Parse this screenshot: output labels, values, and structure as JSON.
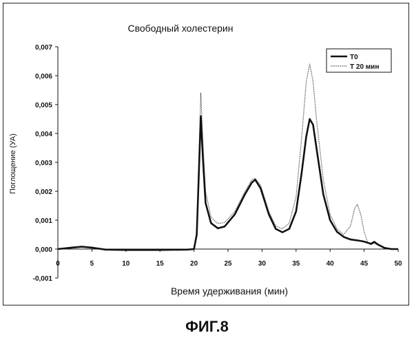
{
  "caption": "ФИГ.8",
  "chart_data": {
    "type": "line",
    "title": "Свободный холестерин",
    "xlabel": "Время удерживания (мин)",
    "ylabel": "Поглощение (УА)",
    "xlim": [
      0,
      50
    ],
    "ylim": [
      -0.001,
      0.007
    ],
    "x_ticks": [
      "0",
      "5",
      "10",
      "15",
      "20",
      "25",
      "30",
      "35",
      "40",
      "45",
      "50"
    ],
    "y_ticks": [
      "-0,001",
      "0,000",
      "0,001",
      "0,002",
      "0,003",
      "0,004",
      "0,005",
      "0,006",
      "0,007"
    ],
    "legend": "top-right",
    "series": [
      {
        "name": "T0",
        "color": "#111111",
        "x": [
          0,
          2,
          3.5,
          5,
          7,
          10,
          15,
          19,
          20,
          20.4,
          20.7,
          21.0,
          21.3,
          21.7,
          22.5,
          23.5,
          24.5,
          26,
          27.5,
          28.5,
          29,
          29.8,
          31,
          32,
          33,
          34,
          35,
          35.8,
          36.5,
          37,
          37.5,
          38,
          39,
          40,
          41,
          42,
          43,
          44,
          45,
          45.5,
          46,
          46.5,
          47,
          48,
          49,
          50
        ],
        "y": [
          0.0,
          5e-05,
          8e-05,
          5e-05,
          -2e-05,
          -3e-05,
          -3e-05,
          -2e-05,
          0.0,
          0.0005,
          0.0025,
          0.0046,
          0.0032,
          0.0016,
          0.0009,
          0.00072,
          0.00078,
          0.0012,
          0.0019,
          0.0023,
          0.0024,
          0.0021,
          0.0012,
          0.0007,
          0.00058,
          0.0007,
          0.0013,
          0.0026,
          0.0039,
          0.0045,
          0.0043,
          0.0035,
          0.0019,
          0.001,
          0.0006,
          0.00042,
          0.00033,
          0.0003,
          0.00026,
          0.00022,
          0.00018,
          0.00025,
          0.00016,
          4e-05,
          0.0,
          0.0
        ]
      },
      {
        "name": "T 20 мин",
        "color": "#555555",
        "x": [
          0,
          2,
          3.5,
          5,
          7,
          10,
          15,
          19,
          20,
          20.4,
          20.7,
          21.0,
          21.3,
          21.7,
          22.5,
          23.5,
          24.5,
          26,
          27.5,
          28.5,
          29,
          29.8,
          31,
          32,
          33,
          34,
          35,
          35.8,
          36.5,
          37,
          37.5,
          38,
          39,
          40,
          41,
          42,
          43,
          43.6,
          44,
          44.5,
          45,
          45.5,
          46,
          46.5,
          47,
          48,
          49,
          50
        ],
        "y": [
          0.0,
          5e-05,
          8e-05,
          5e-05,
          -2e-05,
          -3e-05,
          -3e-05,
          -2e-05,
          0.0,
          0.0006,
          0.003,
          0.0054,
          0.0038,
          0.002,
          0.0011,
          0.00088,
          0.00092,
          0.0013,
          0.002,
          0.0024,
          0.00245,
          0.0022,
          0.0013,
          0.0008,
          0.0007,
          0.0009,
          0.0018,
          0.0038,
          0.0058,
          0.0064,
          0.0058,
          0.0045,
          0.0024,
          0.0012,
          0.0007,
          0.0005,
          0.0008,
          0.0014,
          0.00155,
          0.0012,
          0.0006,
          0.00025,
          0.00015,
          0.0002,
          0.00014,
          3e-05,
          0.0,
          0.0
        ]
      }
    ]
  }
}
